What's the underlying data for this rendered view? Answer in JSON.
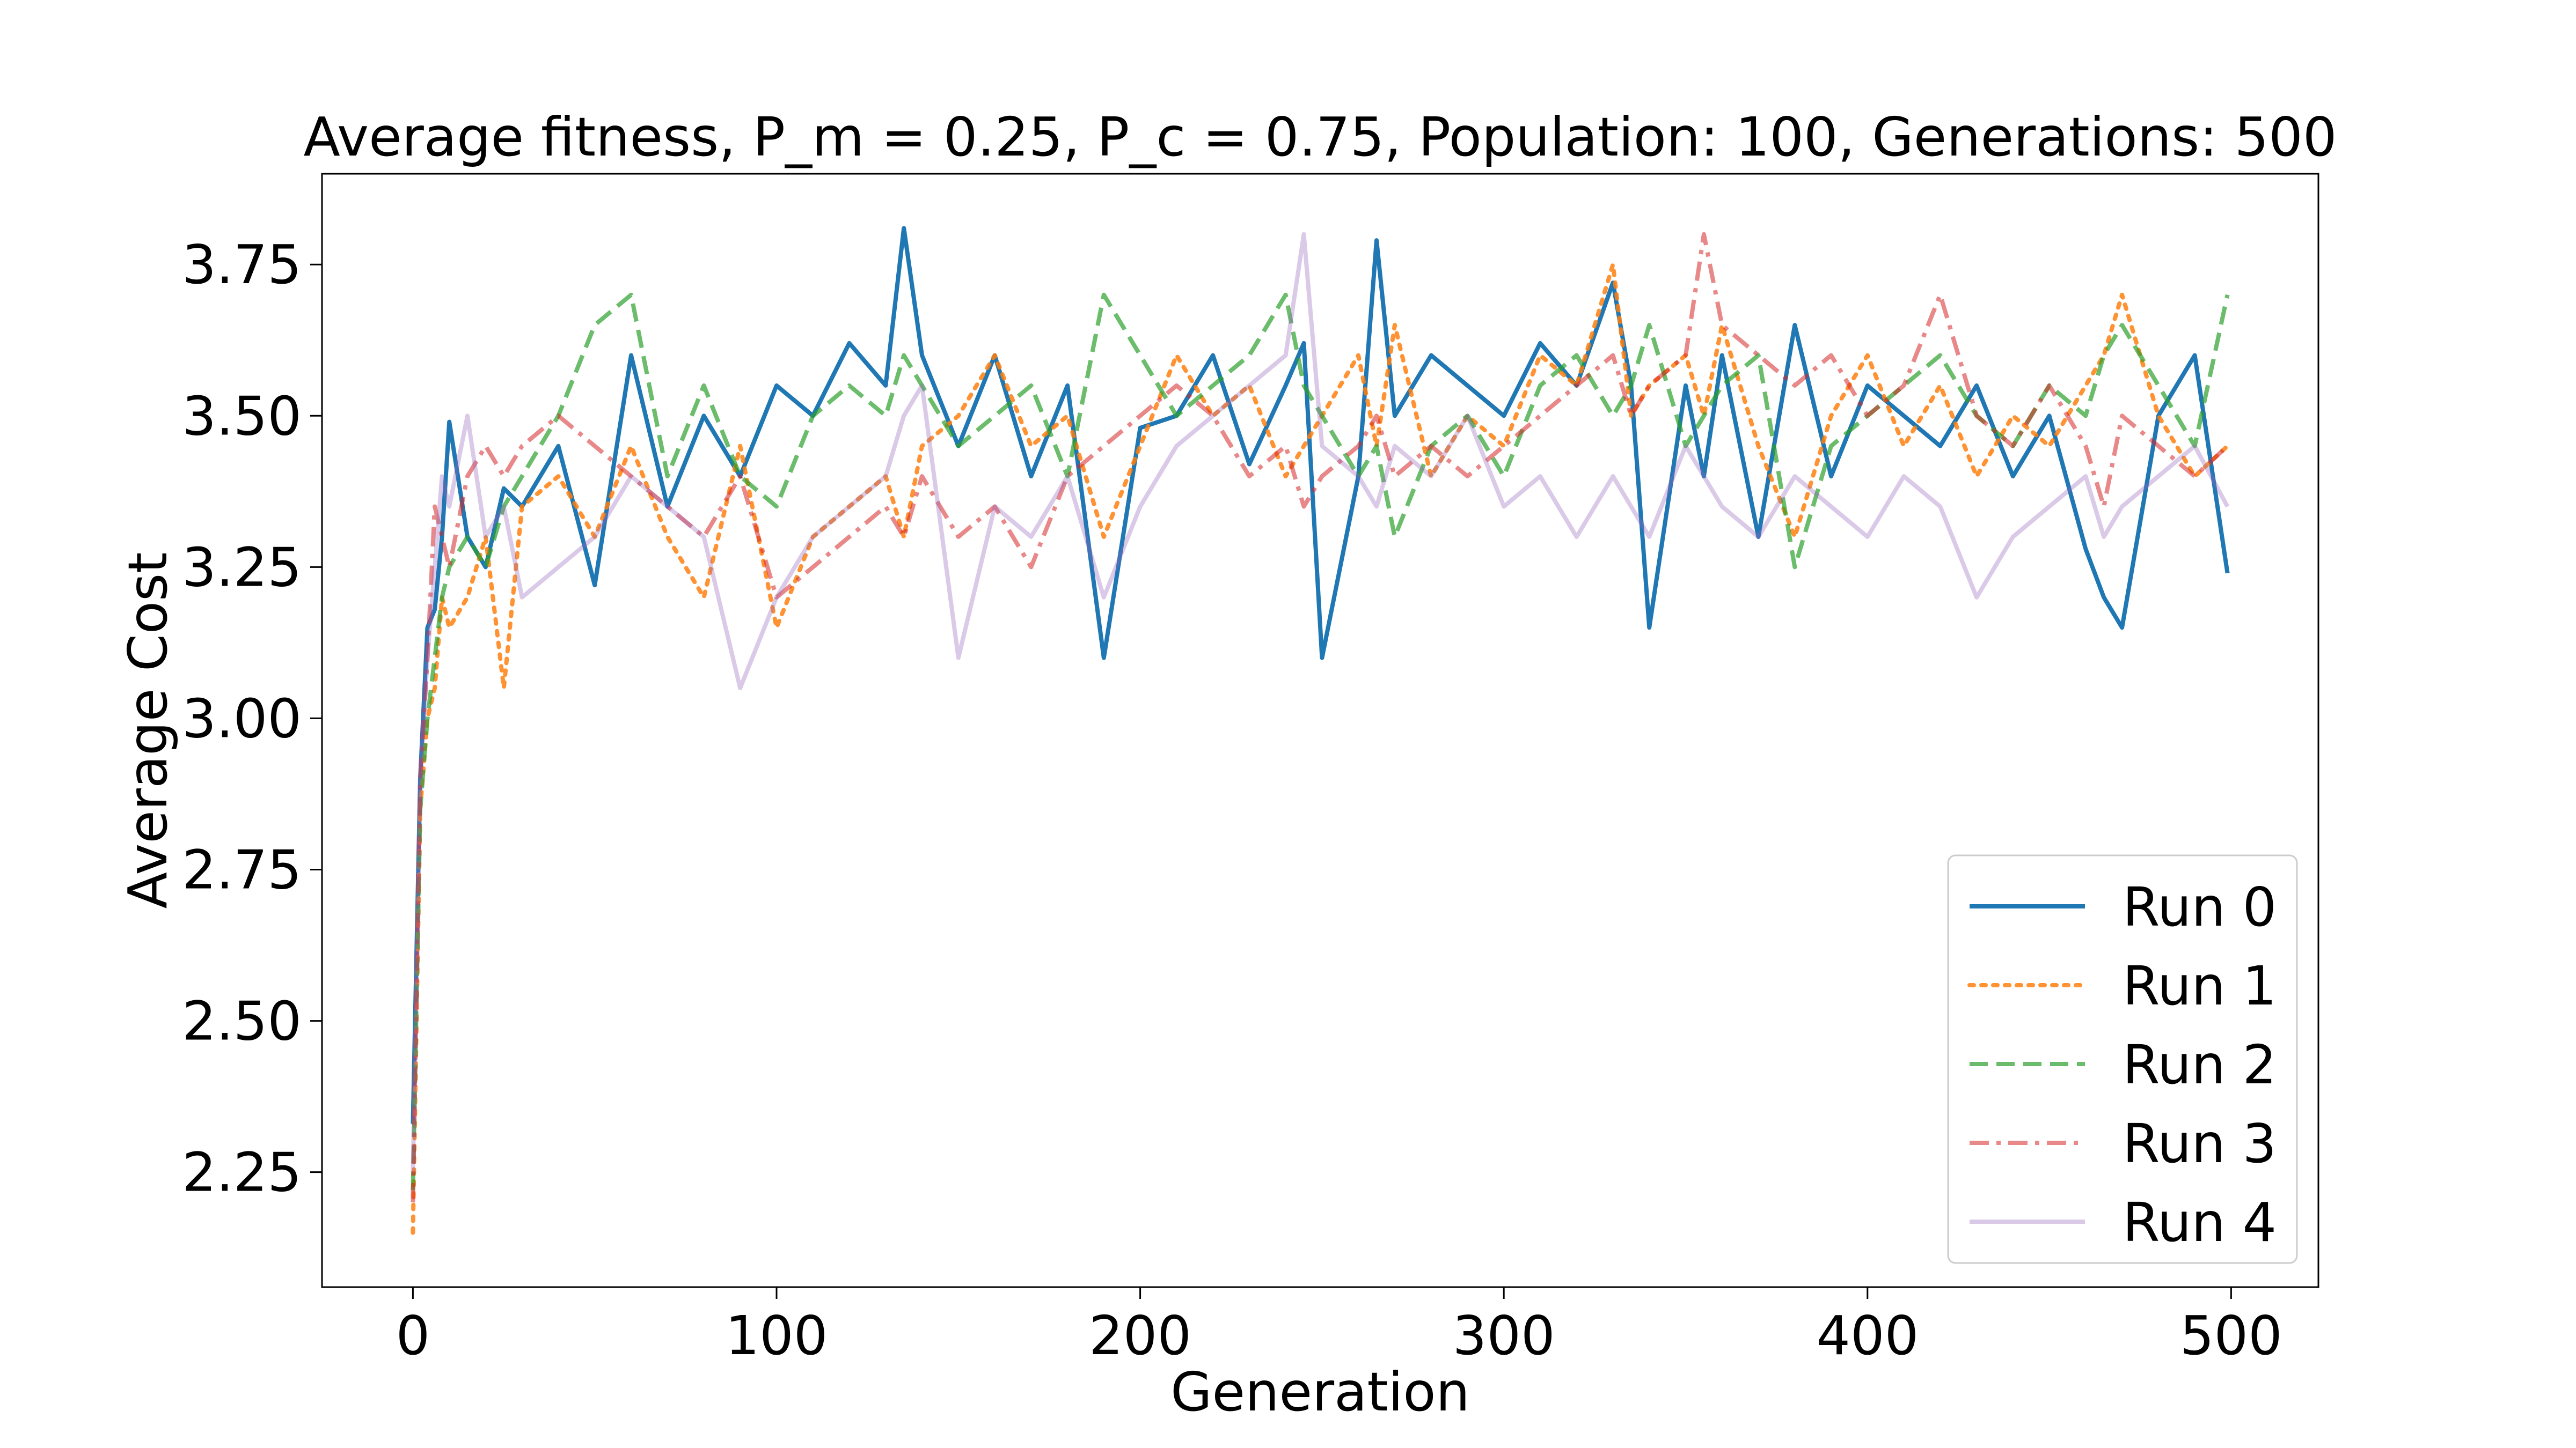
{
  "chart_data": {
    "type": "line",
    "title": "Average fitness, P_m = 0.25, P_c = 0.75, Population: 100, Generations: 500",
    "xlabel": "Generation",
    "ylabel": "Average Cost",
    "xlim": [
      -25,
      524
    ],
    "ylim": [
      2.06,
      3.9
    ],
    "xticks": [
      0,
      100,
      200,
      300,
      400,
      500
    ],
    "xtick_labels": [
      "0",
      "100",
      "200",
      "300",
      "400",
      "500"
    ],
    "yticks": [
      2.25,
      2.5,
      2.75,
      3.0,
      3.25,
      3.5,
      3.75
    ],
    "ytick_labels": [
      "2.25",
      "2.50",
      "2.75",
      "3.00",
      "3.25",
      "3.50",
      "3.75"
    ],
    "grid": false,
    "legend_position": "bottom-right",
    "x": [
      0,
      2,
      4,
      6,
      8,
      10,
      15,
      20,
      25,
      30,
      40,
      50,
      60,
      70,
      80,
      90,
      100,
      110,
      120,
      130,
      135,
      140,
      150,
      160,
      170,
      180,
      190,
      200,
      210,
      220,
      230,
      240,
      245,
      250,
      260,
      265,
      270,
      280,
      290,
      300,
      310,
      320,
      330,
      335,
      340,
      350,
      355,
      360,
      370,
      380,
      390,
      400,
      410,
      420,
      430,
      440,
      450,
      460,
      465,
      470,
      480,
      490,
      499
    ],
    "series": [
      {
        "name": "Run 0",
        "color": "#1f77b4",
        "dash": "solid",
        "values": [
          2.33,
          2.9,
          3.15,
          3.18,
          3.3,
          3.49,
          3.3,
          3.25,
          3.38,
          3.35,
          3.45,
          3.22,
          3.6,
          3.35,
          3.5,
          3.4,
          3.55,
          3.5,
          3.62,
          3.55,
          3.81,
          3.6,
          3.45,
          3.6,
          3.4,
          3.55,
          3.1,
          3.48,
          3.5,
          3.6,
          3.42,
          3.55,
          3.62,
          3.1,
          3.4,
          3.79,
          3.5,
          3.6,
          3.55,
          3.5,
          3.62,
          3.55,
          3.72,
          3.55,
          3.15,
          3.55,
          3.4,
          3.6,
          3.3,
          3.65,
          3.4,
          3.55,
          3.5,
          3.45,
          3.55,
          3.4,
          3.5,
          3.28,
          3.2,
          3.15,
          3.5,
          3.6,
          3.24
        ]
      },
      {
        "name": "Run 1",
        "color": "#ff7f0e",
        "dash": "dotted",
        "values": [
          2.15,
          2.85,
          3.0,
          3.05,
          3.2,
          3.15,
          3.2,
          3.3,
          3.05,
          3.35,
          3.4,
          3.3,
          3.45,
          3.3,
          3.2,
          3.45,
          3.15,
          3.3,
          3.35,
          3.4,
          3.3,
          3.45,
          3.5,
          3.6,
          3.45,
          3.5,
          3.3,
          3.45,
          3.6,
          3.5,
          3.55,
          3.4,
          3.45,
          3.5,
          3.6,
          3.45,
          3.65,
          3.4,
          3.5,
          3.45,
          3.6,
          3.55,
          3.75,
          3.5,
          3.55,
          3.6,
          3.5,
          3.65,
          3.45,
          3.3,
          3.5,
          3.6,
          3.45,
          3.55,
          3.4,
          3.5,
          3.45,
          3.55,
          3.6,
          3.7,
          3.5,
          3.4,
          3.45
        ]
      },
      {
        "name": "Run 2",
        "color": "#2ca02c",
        "dash": "dashed",
        "values": [
          2.22,
          2.85,
          3.0,
          3.1,
          3.2,
          3.25,
          3.3,
          3.25,
          3.35,
          3.4,
          3.5,
          3.65,
          3.7,
          3.4,
          3.55,
          3.4,
          3.35,
          3.5,
          3.55,
          3.5,
          3.6,
          3.55,
          3.45,
          3.5,
          3.55,
          3.4,
          3.7,
          3.6,
          3.5,
          3.55,
          3.6,
          3.7,
          3.55,
          3.5,
          3.4,
          3.45,
          3.3,
          3.45,
          3.5,
          3.4,
          3.55,
          3.6,
          3.5,
          3.55,
          3.65,
          3.45,
          3.5,
          3.55,
          3.6,
          3.25,
          3.45,
          3.5,
          3.55,
          3.6,
          3.5,
          3.45,
          3.55,
          3.5,
          3.6,
          3.65,
          3.55,
          3.45,
          3.7
        ]
      },
      {
        "name": "Run 3",
        "color": "#d62728",
        "dash": "dashdot",
        "values": [
          2.2,
          2.9,
          3.1,
          3.35,
          3.3,
          3.25,
          3.4,
          3.45,
          3.4,
          3.45,
          3.5,
          3.45,
          3.4,
          3.35,
          3.3,
          3.4,
          3.2,
          3.25,
          3.3,
          3.35,
          3.3,
          3.4,
          3.3,
          3.35,
          3.25,
          3.4,
          3.45,
          3.5,
          3.55,
          3.5,
          3.4,
          3.45,
          3.35,
          3.4,
          3.45,
          3.5,
          3.4,
          3.45,
          3.4,
          3.45,
          3.5,
          3.55,
          3.6,
          3.5,
          3.55,
          3.6,
          3.8,
          3.65,
          3.6,
          3.55,
          3.6,
          3.5,
          3.55,
          3.7,
          3.5,
          3.45,
          3.55,
          3.45,
          3.35,
          3.5,
          3.45,
          3.4,
          3.45
        ]
      },
      {
        "name": "Run 4",
        "color": "#9467bd",
        "dash": "solid",
        "values": [
          2.25,
          2.9,
          3.1,
          3.25,
          3.4,
          3.35,
          3.5,
          3.3,
          3.35,
          3.2,
          3.25,
          3.3,
          3.4,
          3.35,
          3.3,
          3.05,
          3.2,
          3.3,
          3.35,
          3.4,
          3.5,
          3.55,
          3.1,
          3.35,
          3.3,
          3.4,
          3.2,
          3.35,
          3.45,
          3.5,
          3.55,
          3.6,
          3.8,
          3.45,
          3.4,
          3.35,
          3.45,
          3.4,
          3.5,
          3.35,
          3.4,
          3.3,
          3.4,
          3.35,
          3.3,
          3.45,
          3.4,
          3.35,
          3.3,
          3.4,
          3.35,
          3.3,
          3.4,
          3.35,
          3.2,
          3.3,
          3.35,
          3.4,
          3.3,
          3.35,
          3.4,
          3.45,
          3.35
        ]
      }
    ]
  }
}
